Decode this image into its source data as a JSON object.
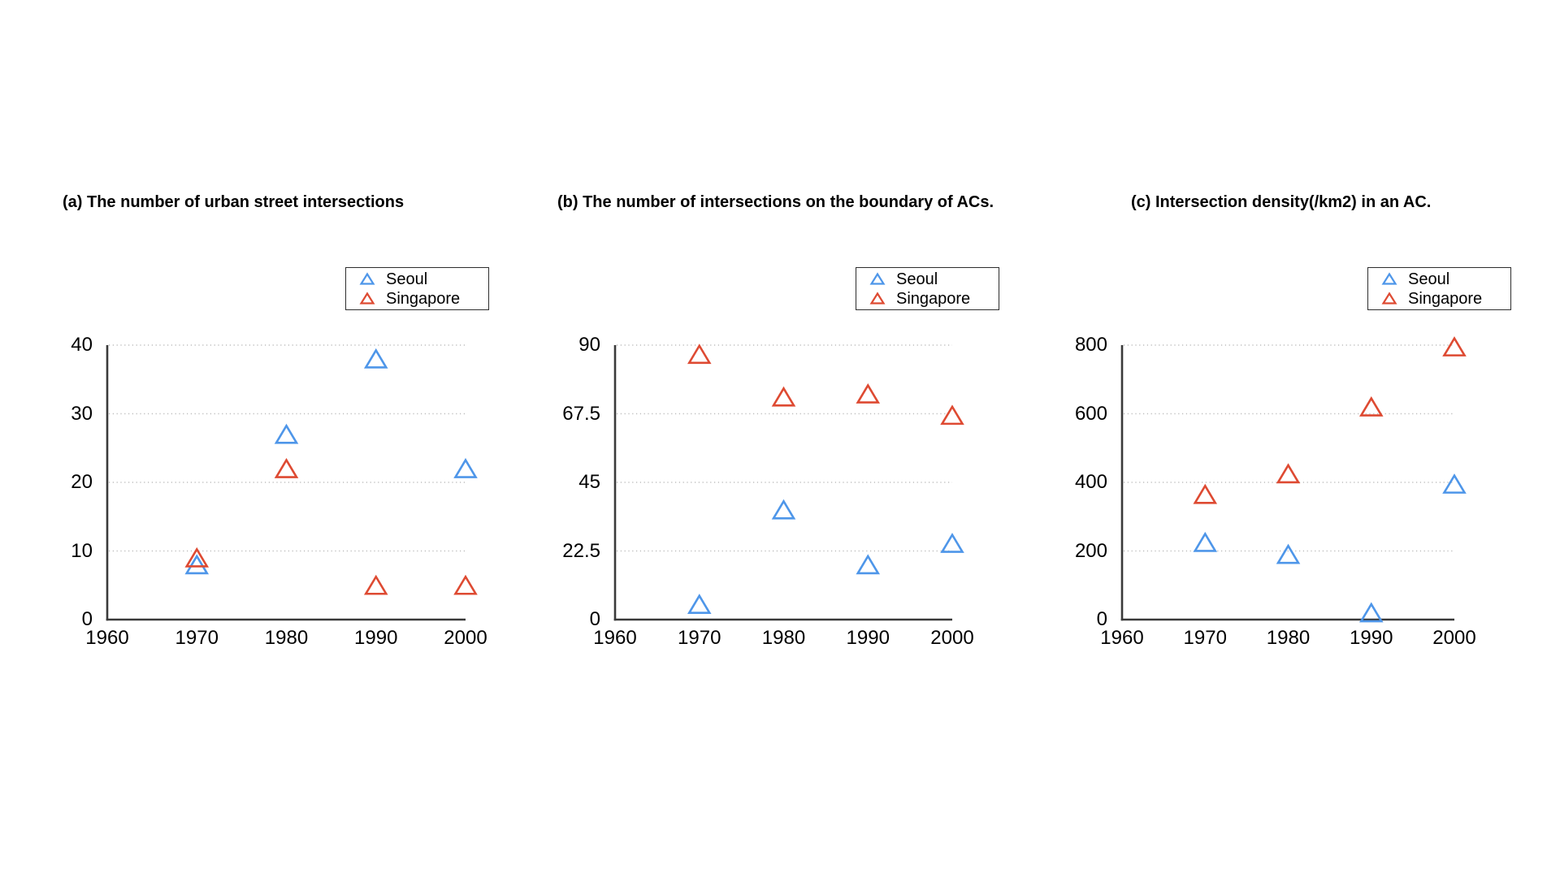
{
  "legend": {
    "position": "top-right",
    "items": [
      {
        "label": "Seoul",
        "color": "#4E96E9"
      },
      {
        "label": "Singapore",
        "color": "#DE4A32"
      }
    ]
  },
  "chart_data": [
    {
      "id": "a",
      "type": "scatter",
      "marker": "open-triangle",
      "title": "(a) The number of urban street intersections",
      "x": [
        1970,
        1980,
        1990,
        2000
      ],
      "xlim": [
        1960,
        2000
      ],
      "xticks": [
        "1960",
        "1970",
        "1980",
        "1990",
        "2000"
      ],
      "ylim": [
        0,
        40
      ],
      "yticks": [
        "0",
        "10",
        "20",
        "30",
        "40"
      ],
      "grid": "horizontal-dotted",
      "series": [
        {
          "name": "Seoul",
          "color": "#4E96E9",
          "values": [
            8,
            27,
            38,
            22
          ]
        },
        {
          "name": "Singapore",
          "color": "#DE4A32",
          "values": [
            9,
            22,
            5,
            5
          ]
        }
      ]
    },
    {
      "id": "b",
      "type": "scatter",
      "marker": "open-triangle",
      "title": "(b) The number of intersections on the boundary of ACs.",
      "x": [
        1970,
        1980,
        1990,
        2000
      ],
      "xlim": [
        1960,
        2000
      ],
      "xticks": [
        "1960",
        "1970",
        "1980",
        "1990",
        "2000"
      ],
      "ylim": [
        0,
        90
      ],
      "yticks": [
        "0",
        "22.5",
        "45",
        "67.5",
        "90"
      ],
      "grid": "horizontal-dotted",
      "series": [
        {
          "name": "Seoul",
          "color": "#4E96E9",
          "values": [
            5,
            36,
            18,
            25
          ]
        },
        {
          "name": "Singapore",
          "color": "#DE4A32",
          "values": [
            87,
            73,
            74,
            67
          ]
        }
      ]
    },
    {
      "id": "c",
      "type": "scatter",
      "marker": "open-triangle",
      "title": "(c) Intersection density(/km2) in an AC.",
      "x": [
        1970,
        1980,
        1990,
        2000
      ],
      "xlim": [
        1960,
        2000
      ],
      "xticks": [
        "1960",
        "1970",
        "1980",
        "1990",
        "2000"
      ],
      "ylim": [
        0,
        800
      ],
      "yticks": [
        "0",
        "200",
        "400",
        "600",
        "800"
      ],
      "grid": "horizontal-dotted",
      "series": [
        {
          "name": "Seoul",
          "color": "#4E96E9",
          "values": [
            225,
            190,
            20,
            395
          ]
        },
        {
          "name": "Singapore",
          "color": "#DE4A32",
          "values": [
            365,
            425,
            620,
            795
          ]
        }
      ]
    }
  ]
}
